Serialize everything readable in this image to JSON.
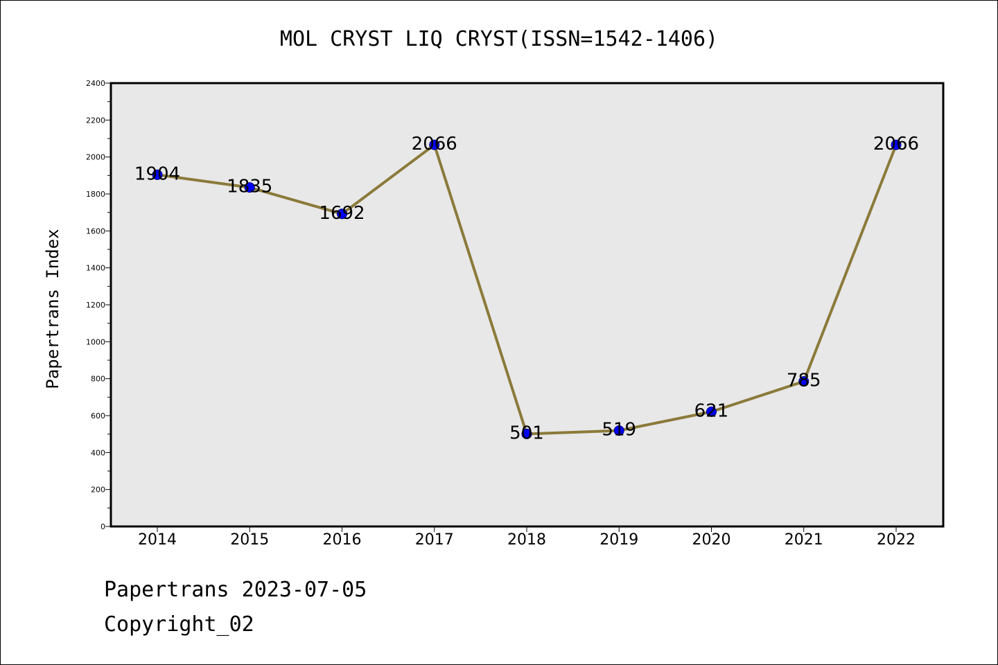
{
  "chart_data": {
    "type": "line",
    "title": "MOL CRYST LIQ CRYST(ISSN=1542-1406)",
    "xlabel": "",
    "ylabel": "Papertrans Index",
    "categories": [
      "2014",
      "2015",
      "2016",
      "2017",
      "2018",
      "2019",
      "2020",
      "2021",
      "2022"
    ],
    "values": [
      1904,
      1835,
      1692,
      2066,
      501,
      519,
      621,
      785,
      2066
    ],
    "data_labels": [
      "1904",
      "1835",
      "1692",
      "2066",
      "501",
      "519",
      "621",
      "785",
      "2066"
    ],
    "ylim": [
      0,
      2400
    ],
    "yticks": [
      0,
      200,
      400,
      600,
      800,
      1000,
      1200,
      1400,
      1600,
      1800,
      2000,
      2200,
      2400
    ],
    "grid": false,
    "colors": {
      "line": "#8b7a3a",
      "marker": "#0000ff",
      "marker_edge": "#000080",
      "plot_bg": "#e8e8e8"
    }
  },
  "footer": {
    "line1": "Papertrans 2023-07-05",
    "line2": "Copyright_02"
  }
}
